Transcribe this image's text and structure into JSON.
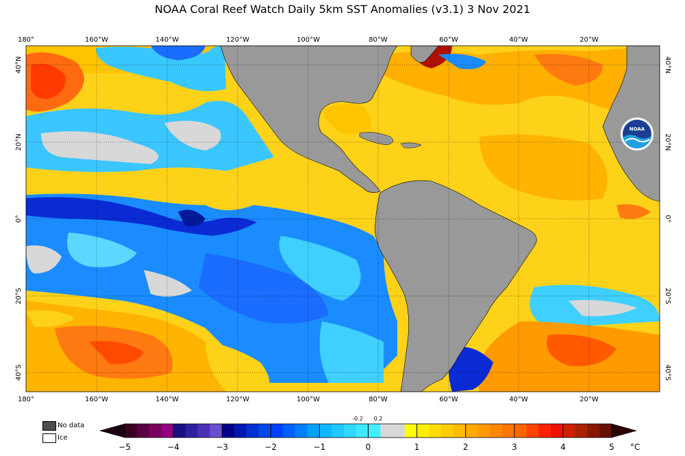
{
  "title": "NOAA Coral Reef Watch Daily 5km SST Anomalies  (v3.1)   3 Nov 2021",
  "logo_text": "NOAA",
  "top_ticks": [
    "180°",
    "160°W",
    "140°W",
    "120°W",
    "100°W",
    "80°W",
    "60°W",
    "40°W",
    "20°W"
  ],
  "bottom_ticks": [
    "180°",
    "160°W",
    "140°W",
    "120°W",
    "100°W",
    "80°W",
    "60°W",
    "40°W",
    "20°W"
  ],
  "left_ticks": [
    "40°N",
    "20°N",
    "0°",
    "20°S",
    "40°S"
  ],
  "right_ticks": [
    "40°N",
    "20°N",
    "0°",
    "20°S",
    "40°S"
  ],
  "legend": {
    "nodata": "No data",
    "ice": "Ice",
    "nodata_color": "#4d4d4d",
    "ice_color": "#ffffff"
  },
  "colorbar": {
    "labels": [
      "−5",
      "−4",
      "−3",
      "−2",
      "−1",
      "0",
      "1",
      "2",
      "3",
      "4",
      "5"
    ],
    "small_labels": [
      "-0.2",
      "0.2"
    ],
    "unit": "°C"
  },
  "colors": {
    "land": "#999999",
    "neutral": "#d8d8d8",
    "cold_strong": "#0a2bd4",
    "cold": "#1a8cff",
    "cool": "#3fd0ff",
    "warm": "#ffdd00",
    "warmer": "#ffb000",
    "hot": "#ff4400"
  }
}
